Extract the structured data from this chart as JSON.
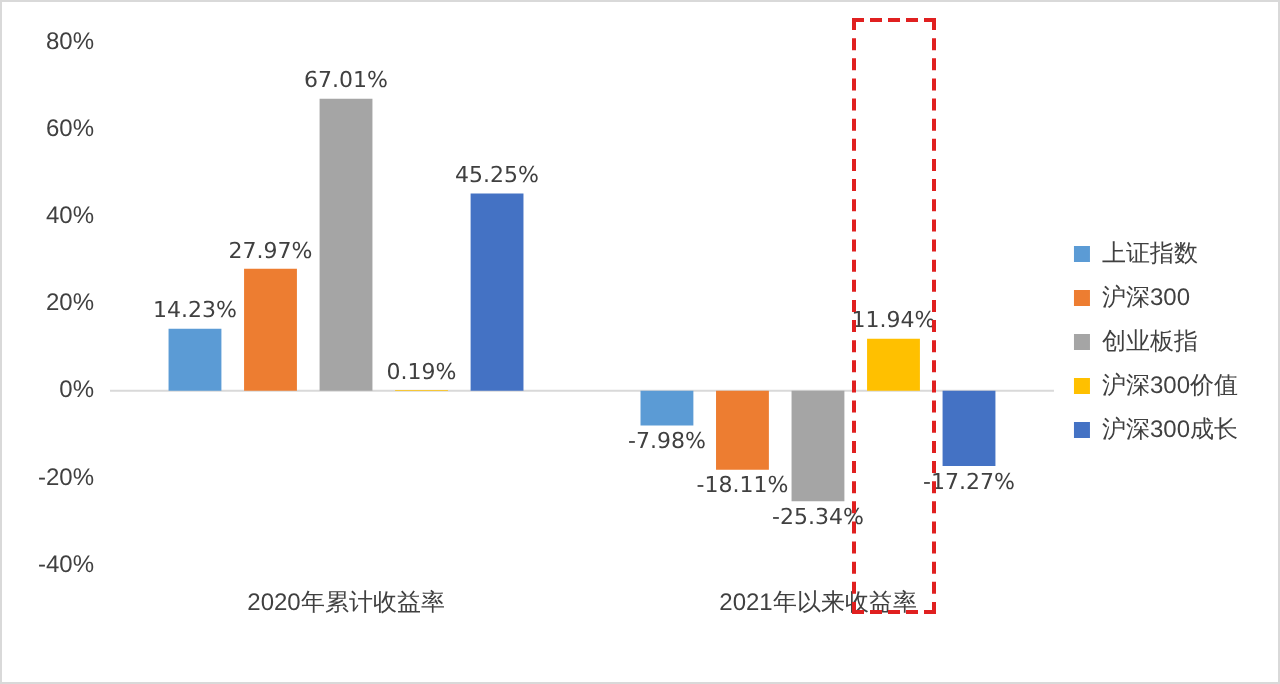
{
  "chart_data": {
    "type": "bar",
    "categories": [
      "2020年累计收益率",
      "2021年以来收益率"
    ],
    "series": [
      {
        "name": "上证指数",
        "color": "#5b9bd5",
        "values": [
          14.23,
          -7.98
        ],
        "value_labels": [
          "14.23%",
          "-7.98%"
        ]
      },
      {
        "name": "沪深300",
        "color": "#ed7d31",
        "values": [
          27.97,
          -18.11
        ],
        "value_labels": [
          "27.97%",
          "-18.11%"
        ]
      },
      {
        "name": "创业板指",
        "color": "#a5a5a5",
        "values": [
          67.01,
          -25.34
        ],
        "value_labels": [
          "67.01%",
          "-25.34%"
        ]
      },
      {
        "name": "沪深300价值",
        "color": "#ffc000",
        "values": [
          0.19,
          11.94
        ],
        "value_labels": [
          "0.19%",
          "11.94%"
        ]
      },
      {
        "name": "沪深300成长",
        "color": "#4472c4",
        "values": [
          45.25,
          -17.27
        ],
        "value_labels": [
          "45.25%",
          "-17.27%"
        ]
      }
    ],
    "ylim": [
      -40,
      80
    ],
    "yticks": [
      {
        "value": -40,
        "label": "-40%"
      },
      {
        "value": -20,
        "label": "-20%"
      },
      {
        "value": 0,
        "label": "0%"
      },
      {
        "value": 20,
        "label": "20%"
      },
      {
        "value": 40,
        "label": "40%"
      },
      {
        "value": 60,
        "label": "60%"
      },
      {
        "value": 80,
        "label": "80%"
      }
    ],
    "ref_lines": [
      {
        "axis": "y",
        "value": 0,
        "color": "#d9d9d9"
      }
    ],
    "grid": false,
    "legend": "right"
  }
}
